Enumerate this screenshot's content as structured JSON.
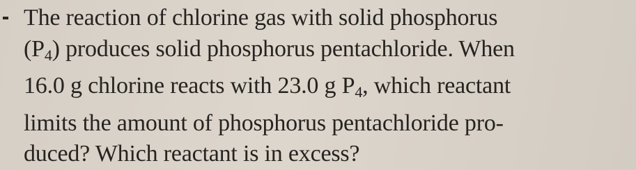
{
  "paragraph": {
    "lines": [
      [
        {
          "text": "The reaction of chlorine gas with solid phosphorus"
        }
      ],
      [
        {
          "text": "(P"
        },
        {
          "text": "4",
          "sub": true
        },
        {
          "text": ") produces solid phosphorus pentachloride. When"
        }
      ],
      [
        {
          "text": "16.0 g chlorine reacts with 23.0 g P"
        },
        {
          "text": "4",
          "sub": true
        },
        {
          "text": ", which reactant"
        }
      ],
      [
        {
          "text": "limits the amount of phosphorus pentachloride pro-"
        }
      ],
      [
        {
          "text": "duced? Which reactant is in excess?"
        }
      ]
    ]
  }
}
